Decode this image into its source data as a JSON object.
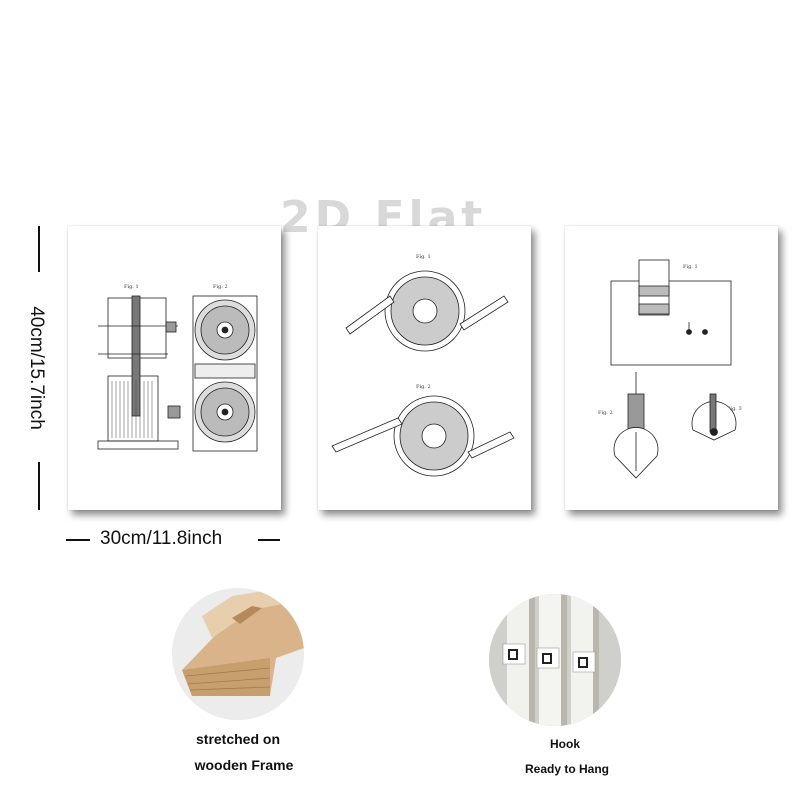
{
  "watermark": "2D Flat",
  "dimensions": {
    "height_label": "40cm/15.7inch",
    "width_label": "30cm/11.8inch"
  },
  "panels": [
    {
      "name": "patent-print-1",
      "labels": [
        "Fig. 1",
        "Fig. 2"
      ]
    },
    {
      "name": "patent-print-2",
      "labels": [
        "Fig. 1",
        "Fig. 2"
      ]
    },
    {
      "name": "patent-print-3",
      "labels": [
        "Fig. 1",
        "Fig. 2",
        "Fig. 3"
      ]
    }
  ],
  "features": {
    "frame": {
      "line1": "stretched on",
      "line2": "wooden Frame"
    },
    "hook": {
      "line1": "Hook",
      "line2": "Ready to Hang"
    }
  },
  "colors": {
    "ink": "#111111",
    "wood": "#d9b48a",
    "canvas": "#ffffff"
  }
}
